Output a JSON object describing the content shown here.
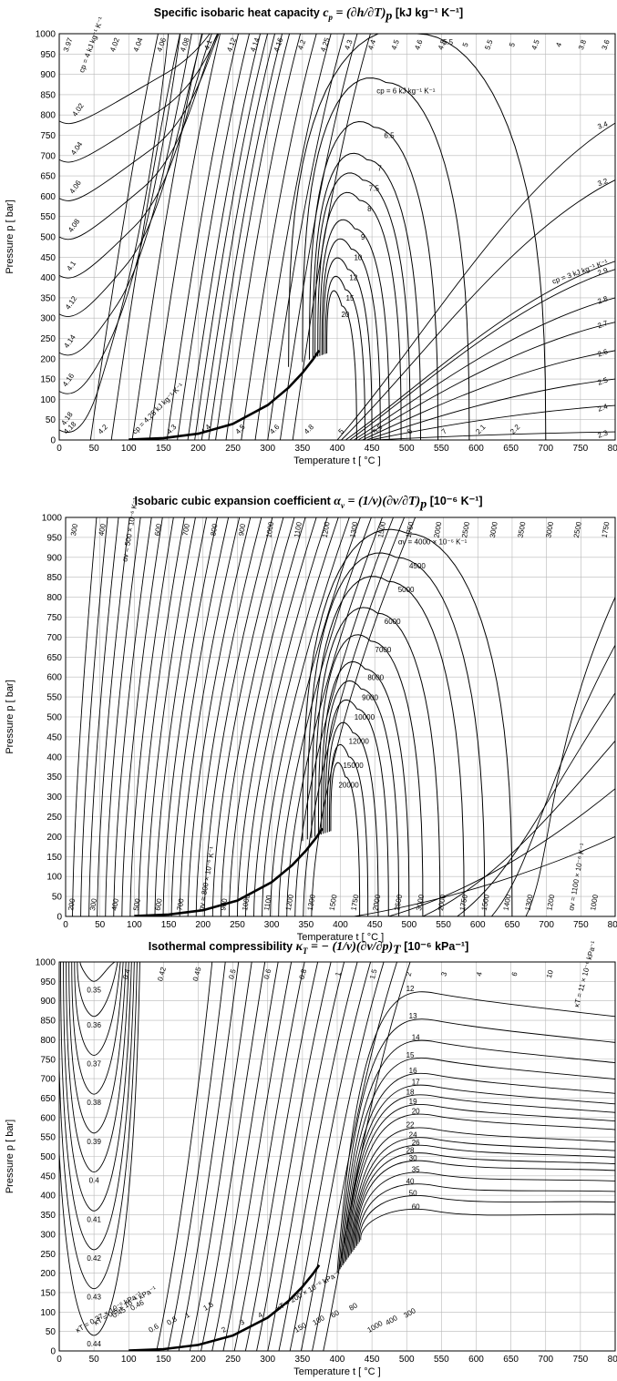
{
  "chart_data": [
    {
      "type": "line",
      "title_text": "Specific isobaric heat capacity",
      "title_symbol": "c",
      "title_symbol_sub": "p",
      "title_formula": "= (∂h/∂T)",
      "title_formula_sub": "p",
      "title_unit": "[kJ kg⁻¹ K⁻¹]",
      "xlabel": "Temperature  t  [ °C ]",
      "ylabel": "Pressure p [ bar]",
      "xlim": [
        0,
        800
      ],
      "ylim": [
        0,
        1000
      ],
      "xticks": [
        "0",
        "50",
        "100",
        "150",
        "200",
        "250",
        "300",
        "350",
        "400",
        "450",
        "500",
        "550",
        "600",
        "650",
        "700",
        "750",
        "800"
      ],
      "yticks": [
        "0",
        "50",
        "100",
        "150",
        "200",
        "250",
        "300",
        "350",
        "400",
        "450",
        "500",
        "550",
        "600",
        "650",
        "700",
        "750",
        "800",
        "850",
        "900",
        "950",
        "1000"
      ],
      "left_contours": [
        "4.18",
        "4.16",
        "4.14",
        "4.12",
        "4.1",
        "4.08",
        "4.06",
        "4.04",
        "4.02"
      ],
      "rising_contours": [
        {
          "t0": 45,
          "label": "3.97"
        },
        {
          "t0": 75,
          "label": "4.02"
        },
        {
          "t0": 105,
          "label": "4.04"
        },
        {
          "t0": 130,
          "label": "4.06"
        },
        {
          "t0": 155,
          "label": "4.08"
        },
        {
          "t0": 170,
          "label": "4.1"
        },
        {
          "t0": 185,
          "label": "4.12"
        },
        {
          "t0": 195,
          "label": "4.14"
        },
        {
          "t0": 205,
          "label": "4.16"
        },
        {
          "t0": 215,
          "label": "4.2"
        },
        {
          "t0": 225,
          "label": "4.25"
        },
        {
          "t0": 240,
          "label": "4.3"
        },
        {
          "t0": 262,
          "label": "4.4"
        },
        {
          "t0": 282,
          "label": "4.5"
        },
        {
          "t0": 300,
          "label": "4.6"
        },
        {
          "t0": 318,
          "label": "4.8"
        },
        {
          "t0": 336,
          "label": "5"
        }
      ],
      "peak_contours": [
        {
          "label": "5.5",
          "t_left": 330,
          "t_right": 700,
          "p_max": 1000
        },
        {
          "label": "cp = 6 kJ kg⁻¹ K⁻¹",
          "t_left": 350,
          "t_right": 590,
          "p_max": 880
        },
        {
          "label": "6.5",
          "t_left": 360,
          "t_right": 545,
          "p_max": 770
        },
        {
          "label": "7",
          "t_left": 365,
          "t_right": 520,
          "p_max": 690
        },
        {
          "label": "7.5",
          "t_left": 368,
          "t_right": 505,
          "p_max": 640
        },
        {
          "label": "8",
          "t_left": 372,
          "t_right": 492,
          "p_max": 590
        },
        {
          "label": "9",
          "t_left": 375,
          "t_right": 475,
          "p_max": 520
        },
        {
          "label": "10",
          "t_left": 378,
          "t_right": 462,
          "p_max": 470
        },
        {
          "label": "12",
          "t_left": 380,
          "t_right": 450,
          "p_max": 420
        },
        {
          "label": "15",
          "t_left": 383,
          "t_right": 440,
          "p_max": 370
        },
        {
          "label": "20",
          "t_left": 385,
          "t_right": 428,
          "p_max": 330
        }
      ],
      "right_contours": [
        {
          "label": "3.4",
          "p_end": 780
        },
        {
          "label": "3.2",
          "p_end": 640
        },
        {
          "label": "cp = 3 kJ kg⁻¹ K⁻¹",
          "p_end": 440
        },
        {
          "label": "2.9",
          "p_end": 420
        },
        {
          "label": "2.8",
          "p_end": 350
        },
        {
          "label": "2.7",
          "p_end": 290
        },
        {
          "label": "2.6",
          "p_end": 220
        },
        {
          "label": "2.5",
          "p_end": 150
        },
        {
          "label": "2.4",
          "p_end": 85
        },
        {
          "label": "2.3",
          "p_end": 20
        }
      ],
      "bottom_labels": [
        "4.18",
        "4.2",
        "cp = 4.25 kJ kg⁻¹ K⁻¹",
        "4.3",
        "4.4",
        "4.5",
        "4.6",
        "4.8",
        "5",
        "5.5",
        "6",
        "7",
        "2.1",
        "2.2"
      ],
      "top_labels": [
        "3.97",
        "cp = 4 kJ kg⁻¹ K⁻¹",
        "4.02",
        "4.04",
        "4.06",
        "4.08",
        "4.1",
        "4.12",
        "4.14",
        "4.16",
        "4.2",
        "4.25",
        "4.3",
        "4.4",
        "4.5",
        "4.6",
        "4.8",
        "5",
        "5.5",
        "5",
        "4.5",
        "4",
        "3.8",
        "3.6"
      ]
    },
    {
      "type": "line",
      "title_text": "Isobaric cubic expansion coefficient",
      "title_symbol": "α",
      "title_symbol_sub": "v",
      "title_formula": "= (1/v)(∂v/∂T)",
      "title_formula_sub": "p",
      "title_unit": "[10⁻⁶ K⁻¹]",
      "xlabel": "Temperature  t  [ °C ]",
      "ylabel": "Pressure p [ bar]",
      "xlim": [
        0,
        800
      ],
      "ylim": [
        0,
        1000
      ],
      "xticks": [
        "0",
        "50",
        "100",
        "150",
        "200",
        "250",
        "300",
        "350",
        "400",
        "450",
        "500",
        "550",
        "600",
        "650",
        "700",
        "750",
        "800"
      ],
      "yticks": [
        "0",
        "50",
        "100",
        "150",
        "200",
        "250",
        "300",
        "350",
        "400",
        "450",
        "500",
        "550",
        "600",
        "650",
        "700",
        "750",
        "800",
        "850",
        "900",
        "950",
        "1000"
      ],
      "top_labels": [
        "300",
        "400",
        "αv = 500 × 10⁻⁶ K⁻¹",
        "600",
        "700",
        "800",
        "900",
        "1000",
        "1100",
        "1200",
        "1300",
        "1500",
        "1750",
        "2000",
        "2500",
        "3000",
        "3500",
        "3000",
        "2500",
        "1750"
      ],
      "bottom_labels": [
        "200",
        "300",
        "400",
        "500",
        "600",
        "700",
        "αv = 800 × 10⁻⁶ K⁻¹",
        "900",
        "1000",
        "1100",
        "1200",
        "1300",
        "1500",
        "1750",
        "2000",
        "2500",
        "3000",
        "2000",
        "1750",
        "1500",
        "1400",
        "1300",
        "1200",
        "αv = 1100 × 10⁻⁶ K⁻¹",
        "1000"
      ],
      "peak_contours": [
        {
          "label": "αv = 4000 × 10⁻⁶ K⁻¹",
          "t_left": 345,
          "t_right": 650,
          "p_max": 960
        },
        {
          "label": "4500",
          "t_left": 352,
          "t_right": 610,
          "p_max": 900
        },
        {
          "label": "5000",
          "t_left": 358,
          "t_right": 580,
          "p_max": 840
        },
        {
          "label": "6000",
          "t_left": 363,
          "t_right": 545,
          "p_max": 760
        },
        {
          "label": "7000",
          "t_left": 368,
          "t_right": 520,
          "p_max": 690
        },
        {
          "label": "8000",
          "t_left": 372,
          "t_right": 500,
          "p_max": 620
        },
        {
          "label": "9000",
          "t_left": 375,
          "t_right": 485,
          "p_max": 570
        },
        {
          "label": "10000",
          "t_left": 378,
          "t_right": 470,
          "p_max": 520
        },
        {
          "label": "12000",
          "t_left": 381,
          "t_right": 455,
          "p_max": 460
        },
        {
          "label": "15000",
          "t_left": 384,
          "t_right": 440,
          "p_max": 400
        },
        {
          "label": "20000",
          "t_left": 386,
          "t_right": 428,
          "p_max": 350
        }
      ]
    },
    {
      "type": "line",
      "title_text": "Isothermal compressibility",
      "title_symbol": "κ",
      "title_symbol_sub": "T",
      "title_formula": "= − (1/v)(∂v/∂p)",
      "title_formula_sub": "T",
      "title_unit": "[10⁻⁶ kPa⁻¹]",
      "xlabel": "Temperature  t  [ °C ]",
      "ylabel": "Pressure p [ bar]",
      "xlim": [
        0,
        800
      ],
      "ylim": [
        0,
        1000
      ],
      "xticks": [
        "0",
        "50",
        "100",
        "150",
        "200",
        "250",
        "300",
        "350",
        "400",
        "450",
        "500",
        "550",
        "600",
        "650",
        "700",
        "750",
        "800"
      ],
      "yticks": [
        "0",
        "50",
        "100",
        "150",
        "200",
        "250",
        "300",
        "350",
        "400",
        "450",
        "500",
        "550",
        "600",
        "650",
        "700",
        "750",
        "800",
        "850",
        "900",
        "950",
        "1000"
      ],
      "u_contours": [
        {
          "label": "0.35",
          "p_min": 950
        },
        {
          "label": "0.36",
          "p_min": 860
        },
        {
          "label": "0.37",
          "p_min": 760
        },
        {
          "label": "0.38",
          "p_min": 660
        },
        {
          "label": "0.39",
          "p_min": 560
        },
        {
          "label": "0.4",
          "p_min": 460
        },
        {
          "label": "0.41",
          "p_min": 360
        },
        {
          "label": "0.42",
          "p_min": 260
        },
        {
          "label": "0.43",
          "p_min": 160
        },
        {
          "label": "0.44",
          "p_min": 40
        }
      ],
      "inline_labels": [
        "κT = 0.37 × 10⁻⁶ kPa⁻¹",
        "κT = 0.5 × 10⁻⁶ kPa⁻¹",
        "0.45",
        "0.46",
        "0.6",
        "0.8",
        "1",
        "1.5",
        "2",
        "3",
        "4",
        "κT = 200 × 10⁻⁶ kPa⁻¹",
        "150",
        "100",
        "60",
        "80",
        "1000",
        "400",
        "300"
      ],
      "top_labels": [
        "0.4",
        "0.42",
        "0.45",
        "0.5",
        "0.6",
        "0.8",
        "1",
        "1.5",
        "2",
        "3",
        "4",
        "6",
        "10",
        "κT = 11 × 10⁻⁶ kPa⁻¹"
      ],
      "right_contours": [
        {
          "label": "12",
          "p": 920
        },
        {
          "label": "13",
          "p": 850
        },
        {
          "label": "14",
          "p": 795
        },
        {
          "label": "15",
          "p": 750
        },
        {
          "label": "16",
          "p": 710
        },
        {
          "label": "17",
          "p": 680
        },
        {
          "label": "18",
          "p": 655
        },
        {
          "label": "19",
          "p": 630
        },
        {
          "label": "20",
          "p": 605
        },
        {
          "label": "22",
          "p": 570
        },
        {
          "label": "24",
          "p": 545
        },
        {
          "label": "26",
          "p": 525
        },
        {
          "label": "28",
          "p": 505
        },
        {
          "label": "30",
          "p": 485
        },
        {
          "label": "35",
          "p": 455
        },
        {
          "label": "40",
          "p": 425
        },
        {
          "label": "50",
          "p": 395
        },
        {
          "label": "60",
          "p": 360
        }
      ]
    }
  ]
}
